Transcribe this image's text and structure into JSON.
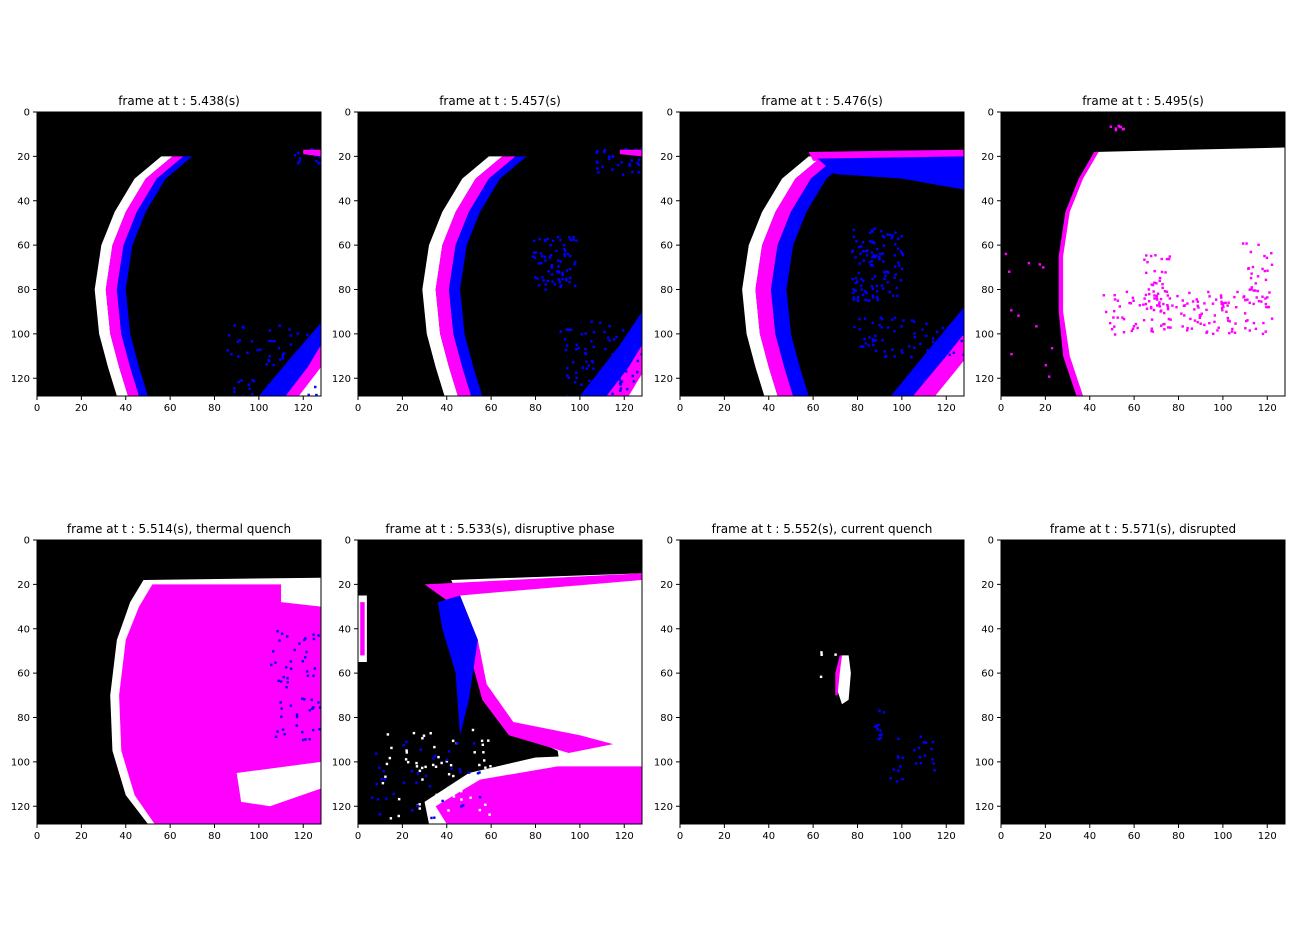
{
  "figure": {
    "layout": {
      "rows": 2,
      "cols": 4
    },
    "colors": {
      "background": "#000000",
      "blue": "#0000ff",
      "magenta": "#ff00ff",
      "white": "#ffffff"
    }
  },
  "chart_data": [
    {
      "type": "heatmap",
      "title": "frame at t : 5.438(s)",
      "xlim": [
        0,
        128
      ],
      "ylim": [
        128,
        0
      ],
      "xticks": [
        0,
        20,
        40,
        60,
        80,
        100,
        120
      ],
      "yticks": [
        0,
        20,
        40,
        60,
        80,
        100,
        120
      ],
      "tick_labels_x": [
        "0",
        "20",
        "40",
        "60",
        "80",
        "100",
        "120"
      ],
      "tick_labels_y": [
        "0",
        "20",
        "40",
        "60",
        "80",
        "100",
        "120"
      ]
    },
    {
      "type": "heatmap",
      "title": "frame at t : 5.457(s)",
      "xlim": [
        0,
        128
      ],
      "ylim": [
        128,
        0
      ],
      "xticks": [
        0,
        20,
        40,
        60,
        80,
        100,
        120
      ],
      "yticks": [
        0,
        20,
        40,
        60,
        80,
        100,
        120
      ],
      "tick_labels_x": [
        "0",
        "20",
        "40",
        "60",
        "80",
        "100",
        "120"
      ],
      "tick_labels_y": [
        "0",
        "20",
        "40",
        "60",
        "80",
        "100",
        "120"
      ]
    },
    {
      "type": "heatmap",
      "title": "frame at t : 5.476(s)",
      "xlim": [
        0,
        128
      ],
      "ylim": [
        128,
        0
      ],
      "xticks": [
        0,
        20,
        40,
        60,
        80,
        100,
        120
      ],
      "yticks": [
        0,
        20,
        40,
        60,
        80,
        100,
        120
      ],
      "tick_labels_x": [
        "0",
        "20",
        "40",
        "60",
        "80",
        "100",
        "120"
      ],
      "tick_labels_y": [
        "0",
        "20",
        "40",
        "60",
        "80",
        "100",
        "120"
      ]
    },
    {
      "type": "heatmap",
      "title": "frame at t : 5.495(s)",
      "xlim": [
        0,
        128
      ],
      "ylim": [
        128,
        0
      ],
      "xticks": [
        0,
        20,
        40,
        60,
        80,
        100,
        120
      ],
      "yticks": [
        0,
        20,
        40,
        60,
        80,
        100,
        120
      ],
      "tick_labels_x": [
        "0",
        "20",
        "40",
        "60",
        "80",
        "100",
        "120"
      ],
      "tick_labels_y": [
        "0",
        "20",
        "40",
        "60",
        "80",
        "100",
        "120"
      ]
    },
    {
      "type": "heatmap",
      "title": "frame at t : 5.514(s), thermal quench",
      "xlim": [
        0,
        128
      ],
      "ylim": [
        128,
        0
      ],
      "xticks": [
        0,
        20,
        40,
        60,
        80,
        100,
        120
      ],
      "yticks": [
        0,
        20,
        40,
        60,
        80,
        100,
        120
      ],
      "tick_labels_x": [
        "0",
        "20",
        "40",
        "60",
        "80",
        "100",
        "120"
      ],
      "tick_labels_y": [
        "0",
        "20",
        "40",
        "60",
        "80",
        "100",
        "120"
      ]
    },
    {
      "type": "heatmap",
      "title": "frame at t : 5.533(s), disruptive phase",
      "xlim": [
        0,
        128
      ],
      "ylim": [
        128,
        0
      ],
      "xticks": [
        0,
        20,
        40,
        60,
        80,
        100,
        120
      ],
      "yticks": [
        0,
        20,
        40,
        60,
        80,
        100,
        120
      ],
      "tick_labels_x": [
        "0",
        "20",
        "40",
        "60",
        "80",
        "100",
        "120"
      ],
      "tick_labels_y": [
        "0",
        "20",
        "40",
        "60",
        "80",
        "100",
        "120"
      ]
    },
    {
      "type": "heatmap",
      "title": "frame at t : 5.552(s), current quench",
      "xlim": [
        0,
        128
      ],
      "ylim": [
        128,
        0
      ],
      "xticks": [
        0,
        20,
        40,
        60,
        80,
        100,
        120
      ],
      "yticks": [
        0,
        20,
        40,
        60,
        80,
        100,
        120
      ],
      "tick_labels_x": [
        "0",
        "20",
        "40",
        "60",
        "80",
        "100",
        "120"
      ],
      "tick_labels_y": [
        "0",
        "20",
        "40",
        "60",
        "80",
        "100",
        "120"
      ]
    },
    {
      "type": "heatmap",
      "title": "frame at t : 5.571(s), disrupted",
      "xlim": [
        0,
        128
      ],
      "ylim": [
        128,
        0
      ],
      "xticks": [
        0,
        20,
        40,
        60,
        80,
        100,
        120
      ],
      "yticks": [
        0,
        20,
        40,
        60,
        80,
        100,
        120
      ],
      "tick_labels_x": [
        "0",
        "20",
        "40",
        "60",
        "80",
        "100",
        "120"
      ],
      "tick_labels_y": [
        "0",
        "20",
        "40",
        "60",
        "80",
        "100",
        "120"
      ]
    }
  ]
}
